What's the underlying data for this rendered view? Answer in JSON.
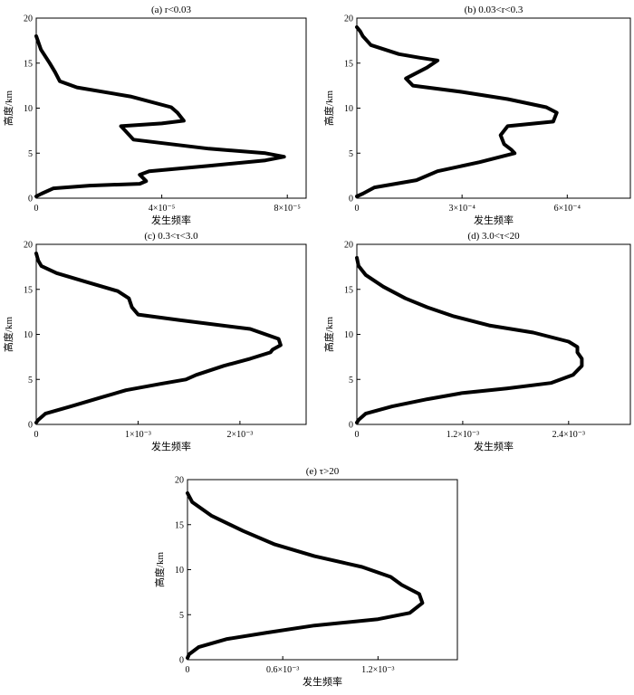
{
  "chart_data": [
    {
      "type": "line",
      "title": "(a) r<0.03",
      "xlabel": "发生频率",
      "ylabel": "高度/km",
      "xlim": [
        0,
        8.6e-05
      ],
      "ylim": [
        0,
        20
      ],
      "xticks": [
        0,
        4e-05,
        8e-05
      ],
      "xtick_labels": [
        "0",
        "4×10⁻⁵",
        "8×10⁻⁵"
      ],
      "yticks": [
        0,
        5,
        10,
        15,
        20
      ],
      "ytick_labels": [
        "0",
        "5",
        "10",
        "15",
        "20"
      ],
      "grid": false,
      "series": [
        {
          "x": [
            0,
            1.7e-06,
            5.5e-06,
            1.7e-05,
            3.3e-05,
            3.5e-05,
            3.3e-05,
            3.6e-05,
            5.5e-05,
            7.3e-05,
            7.9e-05,
            7.3e-05,
            5.5e-05,
            3.1e-05,
            2.7e-05,
            4e-05,
            4.7e-05,
            4.5e-05,
            4.3e-05,
            3e-05,
            1.3e-05,
            7.5e-06,
            6e-06,
            4.3e-06,
            1.5e-06,
            0
          ],
          "y": [
            0.2,
            0.5,
            1.1,
            1.4,
            1.6,
            1.9,
            2.6,
            3,
            3.6,
            4.2,
            4.6,
            5,
            5.5,
            6.5,
            8,
            8.3,
            8.6,
            9.5,
            10.1,
            11.3,
            12.3,
            13,
            14,
            15,
            16.5,
            18
          ]
        }
      ]
    },
    {
      "type": "line",
      "title": "(b) 0.03<r<0.3",
      "xlabel": "发生频率",
      "ylabel": "高度/km",
      "xlim": [
        0,
        0.00078
      ],
      "ylim": [
        0,
        20
      ],
      "xticks": [
        0,
        0.0003,
        0.0006
      ],
      "xtick_labels": [
        "0",
        "3×10⁻⁴",
        "6×10⁻⁴"
      ],
      "yticks": [
        0,
        5,
        10,
        15,
        20
      ],
      "ytick_labels": [
        "0",
        "5",
        "10",
        "15",
        "20"
      ],
      "grid": false,
      "series": [
        {
          "x": [
            0,
            1.7e-05,
            5e-05,
            0.00017,
            0.00023,
            0.00035,
            0.00045,
            0.00044,
            0.00042,
            0.00041,
            0.00043,
            0.00056,
            0.00057,
            0.00054,
            0.00043,
            0.0003,
            0.00016,
            0.00014,
            0.0002,
            0.00023,
            0.00018,
            0.00012,
            4e-05,
            1.7e-05,
            1e-05,
            0
          ],
          "y": [
            0.2,
            0.5,
            1.2,
            2,
            3,
            4,
            5,
            5.4,
            6,
            7,
            8,
            8.5,
            9.5,
            10.1,
            11,
            11.8,
            12.5,
            13.3,
            14.5,
            15.3,
            15.6,
            16,
            17,
            18,
            18.5,
            19
          ]
        }
      ]
    },
    {
      "type": "line",
      "title": "(c) 0.3<τ<3.0",
      "xlabel": "发生频率",
      "ylabel": "高度/km",
      "xlim": [
        0,
        0.00265
      ],
      "ylim": [
        0,
        20
      ],
      "xticks": [
        0,
        0.001,
        0.002
      ],
      "xtick_labels": [
        "0",
        "1×10⁻³",
        "2×10⁻³"
      ],
      "yticks": [
        0,
        5,
        10,
        15,
        20
      ],
      "ytick_labels": [
        "0",
        "5",
        "10",
        "15",
        "20"
      ],
      "grid": false,
      "series": [
        {
          "x": [
            0,
            2e-05,
            9e-05,
            0.00034,
            0.00064,
            0.00088,
            0.00122,
            0.00147,
            0.00157,
            0.00184,
            0.0021,
            0.0023,
            0.00232,
            0.0024,
            0.00238,
            0.0021,
            0.0014,
            0.001,
            0.00094,
            0.00091,
            0.0008,
            0.0005,
            0.0002,
            5e-05,
            2e-05,
            0
          ],
          "y": [
            0.2,
            0.5,
            1.2,
            2,
            3,
            3.8,
            4.5,
            5,
            5.5,
            6.5,
            7.3,
            8,
            8.3,
            8.8,
            9.5,
            10.6,
            11.6,
            12.2,
            13,
            14,
            14.8,
            15.8,
            16.8,
            17.6,
            18.2,
            19
          ]
        }
      ]
    },
    {
      "type": "line",
      "title": "(d) 3.0<τ<20",
      "xlabel": "发生频率",
      "ylabel": "高度/km",
      "xlim": [
        0,
        0.0031
      ],
      "ylim": [
        0,
        20
      ],
      "xticks": [
        0,
        0.0012,
        0.0024
      ],
      "xtick_labels": [
        "0",
        "1.2×10⁻³",
        "2.4×10⁻³"
      ],
      "yticks": [
        0,
        5,
        10,
        15,
        20
      ],
      "ytick_labels": [
        "0",
        "5",
        "10",
        "15",
        "20"
      ],
      "grid": false,
      "series": [
        {
          "x": [
            0,
            2e-05,
            0.0001,
            0.0004,
            0.0008,
            0.0012,
            0.0017,
            0.0022,
            0.00245,
            0.00255,
            0.00255,
            0.0025,
            0.0025,
            0.0024,
            0.002,
            0.0015,
            0.0011,
            0.0008,
            0.00055,
            0.0003,
            0.0001,
            2e-05,
            0
          ],
          "y": [
            0.2,
            0.5,
            1.2,
            2,
            2.8,
            3.5,
            4,
            4.6,
            5.5,
            6.5,
            7.3,
            8,
            8.6,
            9.2,
            10.2,
            11,
            12,
            13,
            14,
            15.3,
            16.6,
            17.6,
            18.5
          ]
        }
      ]
    },
    {
      "type": "line",
      "title": "(e) τ>20",
      "xlabel": "发生频率",
      "ylabel": "高度/km",
      "xlim": [
        0,
        0.0017
      ],
      "ylim": [
        0,
        20
      ],
      "xticks": [
        0,
        0.0006,
        0.0012
      ],
      "xtick_labels": [
        "0",
        "0.6×10⁻³",
        "1.2×10⁻³"
      ],
      "yticks": [
        0,
        5,
        10,
        15,
        20
      ],
      "ytick_labels": [
        "0",
        "5",
        "10",
        "15",
        "20"
      ],
      "grid": false,
      "series": [
        {
          "x": [
            0,
            1e-05,
            7e-05,
            0.00025,
            0.0005,
            0.0008,
            0.0012,
            0.0014,
            0.00148,
            0.00146,
            0.00135,
            0.00128,
            0.0011,
            0.0008,
            0.00055,
            0.00035,
            0.00015,
            3e-05,
            0
          ],
          "y": [
            0.2,
            0.6,
            1.4,
            2.3,
            3,
            3.8,
            4.5,
            5.2,
            6.3,
            7.3,
            8.3,
            9.2,
            10.3,
            11.5,
            12.8,
            14.3,
            16,
            17.5,
            18.5
          ]
        }
      ]
    }
  ]
}
